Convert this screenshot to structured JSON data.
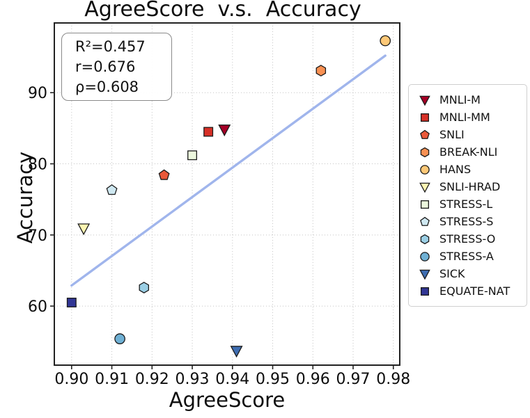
{
  "title": "AgreeScore  v.s.  Accuracy",
  "stats_box": {
    "line1": "R²=0.457",
    "line2": "r=0.676",
    "line3": "ρ=0.608"
  },
  "chart_data": {
    "type": "scatter",
    "title": "AgreeScore  v.s.  Accuracy",
    "xlabel": "AgreeScore",
    "ylabel": "Accuracy",
    "xlim": [
      0.8957,
      0.9816
    ],
    "ylim": [
      51.7,
      99.8
    ],
    "xticks": [
      0.9,
      0.91,
      0.92,
      0.93,
      0.94,
      0.95,
      0.96,
      0.97,
      0.98
    ],
    "xtick_labels": [
      "0.90",
      "0.91",
      "0.92",
      "0.93",
      "0.94",
      "0.95",
      "0.96",
      "0.97",
      "0.98"
    ],
    "yticks": [
      60,
      70,
      80,
      90
    ],
    "ytick_labels": [
      "60",
      "70",
      "80",
      "90"
    ],
    "grid": "dotted",
    "legend_position": "outside-right",
    "stats": {
      "R2": 0.457,
      "r": 0.676,
      "rho": 0.608
    },
    "regression_line": {
      "x": [
        0.9,
        0.978
      ],
      "y": [
        62.9,
        95.2
      ],
      "color": "#a0b5ec"
    },
    "colors": {
      "grid": "#c4c4c4",
      "frame": "#222222",
      "marker_edge": "#1a1a1a"
    },
    "series": [
      {
        "name": "MNLI-M",
        "marker": "triangle-down",
        "color": "#a50026",
        "x": 0.938,
        "y": 84.8
      },
      {
        "name": "MNLI-MM",
        "marker": "square",
        "color": "#d73027",
        "x": 0.934,
        "y": 84.5
      },
      {
        "name": "SNLI",
        "marker": "pentagon",
        "color": "#ea593a",
        "x": 0.923,
        "y": 78.4
      },
      {
        "name": "BREAK-NLI",
        "marker": "hexagon",
        "color": "#f99153",
        "x": 0.962,
        "y": 93.1
      },
      {
        "name": "HANS",
        "marker": "circle",
        "color": "#fdc877",
        "x": 0.978,
        "y": 97.3
      },
      {
        "name": "SNLI-HRAD",
        "marker": "triangle-down",
        "color": "#fef6b2",
        "x": 0.903,
        "y": 70.9
      },
      {
        "name": "STRESS-L",
        "marker": "square",
        "color": "#ecf7dd",
        "x": 0.93,
        "y": 81.2
      },
      {
        "name": "STRESS-S",
        "marker": "pentagon",
        "color": "#cfe8f1",
        "x": 0.91,
        "y": 76.3
      },
      {
        "name": "STRESS-O",
        "marker": "hexagon",
        "color": "#9bcfe5",
        "x": 0.918,
        "y": 62.6
      },
      {
        "name": "STRESS-A",
        "marker": "circle",
        "color": "#6fb0d4",
        "x": 0.912,
        "y": 55.4
      },
      {
        "name": "SICK",
        "marker": "triangle-down",
        "color": "#3e6db1",
        "x": 0.941,
        "y": 53.7
      },
      {
        "name": "EQUATE-NAT",
        "marker": "square",
        "color": "#313695",
        "x": 0.9,
        "y": 60.5
      }
    ]
  }
}
